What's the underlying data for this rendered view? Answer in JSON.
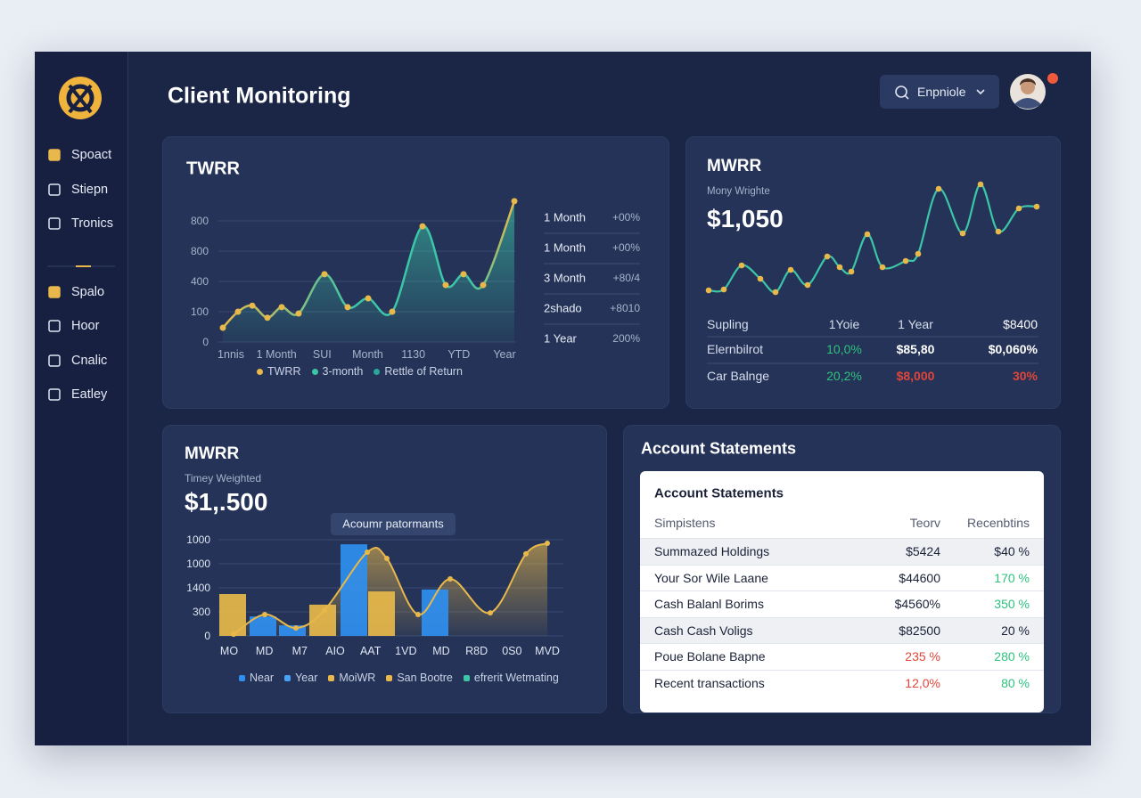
{
  "sidebar": {
    "menu": [
      "Spoact",
      "Stiepn",
      "Tronics",
      "Spalo",
      "Hoor",
      "Cnalic",
      "Eatley"
    ]
  },
  "header": {
    "title": "Client Monitoring",
    "search": "Enpniole"
  },
  "chart_data": [
    {
      "type": "area",
      "title": "TWRR",
      "categories": [
        "1nnis",
        "1 Month",
        "SUI",
        "Month",
        "1130",
        "YTD",
        "Year"
      ],
      "xlim": [
        0,
        335
      ],
      "ylim": [
        0,
        4.7
      ],
      "yticks": [
        0,
        {
          "value": 1,
          "label": "100"
        },
        {
          "value": 2,
          "label": "400"
        },
        {
          "value": 3,
          "label": "800"
        },
        {
          "value": 4,
          "label": "800"
        }
      ],
      "grid": true,
      "series": [
        {
          "color": "#3cc6a8",
          "marker_color": "#e8b84a",
          "x": [
            5,
            22,
            38,
            55,
            71,
            90,
            119,
            145,
            168,
            195,
            229,
            255,
            275,
            297,
            332
          ],
          "values": [
            0.47,
            1.0,
            1.2,
            0.8,
            1.15,
            0.94,
            2.24,
            1.15,
            1.44,
            1.0,
            3.82,
            1.88,
            2.24,
            1.88,
            4.65
          ]
        }
      ],
      "legend": [
        {
          "name": "TWRR",
          "color": "#e8b84a"
        },
        {
          "name": "3-month",
          "color": "#3cc6a8"
        },
        {
          "name": "Rettle of Return",
          "color": "#2aa79a"
        }
      ],
      "side_table": {
        "rows": [
          [
            "1 Month",
            "+00%"
          ],
          [
            "1 Month",
            "+00%"
          ],
          [
            "3 Month",
            "+80/4"
          ],
          [
            "2shado",
            "+8010"
          ],
          [
            "1 Year",
            "200%"
          ]
        ]
      }
    },
    {
      "type": "line",
      "title": "MWRR",
      "subtitle": "Mony Wrighte",
      "value_label": "$1,050",
      "xlim": [
        0,
        370
      ],
      "ylim": [
        0,
        140
      ],
      "series": [
        {
          "color": "#3cc6a8",
          "marker_color": "#e8b84a",
          "x": [
            0,
            17,
            37,
            58,
            75,
            92,
            111,
            133,
            147,
            160,
            178,
            195,
            221,
            235,
            258,
            285,
            305,
            325,
            348,
            368
          ],
          "values": [
            14,
            15,
            42,
            27,
            12,
            37,
            20,
            52,
            40,
            35,
            77,
            40,
            47,
            55,
            128,
            78,
            133,
            80,
            106,
            108
          ]
        }
      ],
      "table": {
        "header": [
          "Supling",
          "1Yoie",
          "1 Year",
          "$8400"
        ],
        "rows": [
          [
            "Elernbilrot",
            "10,0%",
            "$85,80",
            "$0,060%"
          ],
          [
            "Car Balnge",
            "20,2%",
            "$8,000",
            "30%"
          ]
        ]
      }
    },
    {
      "type": "combo",
      "title": "MWRR",
      "subtitle": "Timey Weighted",
      "value_label": "$1,.500",
      "annotation": "Acoumr patormants",
      "categories": [
        "MO",
        "MD",
        "M7",
        "AIO",
        "AAT",
        "1VD",
        "MD",
        "R8D",
        "0S0",
        "MVD"
      ],
      "xlim": [
        0,
        387
      ],
      "ylim": [
        0,
        4.1
      ],
      "yticks": [
        0,
        {
          "value": 1,
          "label": "300"
        },
        {
          "value": 2,
          "label": "1400"
        },
        {
          "value": 3,
          "label": "1000"
        },
        {
          "value": 4,
          "label": "1000"
        }
      ],
      "grid": true,
      "series": [
        {
          "kind": "area",
          "color": "#e8b84a",
          "x": [
            17,
            52,
            87,
            119,
            167,
            189,
            224,
            260,
            305,
            345,
            369
          ],
          "values": [
            0.07,
            0.89,
            0.33,
            1.07,
            3.48,
            3.22,
            0.89,
            2.37,
            0.96,
            3.41,
            3.85
          ]
        },
        {
          "kind": "bar",
          "color": "#e8b84a",
          "x": [
            16,
            117,
            183
          ],
          "values": [
            1.74,
            1.3,
            1.85
          ]
        },
        {
          "kind": "bar",
          "color": "#2f8ff0",
          "x": [
            50,
            83,
            152,
            243
          ],
          "values": [
            0.81,
            0.44,
            3.81,
            1.93
          ]
        }
      ],
      "legend": [
        {
          "name": "Near",
          "color": "#2f8ff0"
        },
        {
          "name": "Year",
          "color": "#4aa3f5"
        },
        {
          "name": "MoiWR",
          "color": "#e8b84a"
        },
        {
          "name": "San Bootre",
          "color": "#e8b84a"
        },
        {
          "name": "efrerit Wetmating",
          "color": "#3cc6a8"
        }
      ]
    }
  ],
  "statements": {
    "title": "Account Statements",
    "panel_title": "Account Statements",
    "header": [
      "Simpistens",
      "Teorv",
      "Recenbtins"
    ],
    "rows": [
      [
        "Summazed Holdings",
        "$5424",
        "$40 %"
      ],
      [
        "Your Sor Wile Laane",
        "$44600",
        "170 %"
      ],
      [
        "Cash Balanl Borims",
        "$4560%",
        "350 %"
      ],
      [
        "Cash Cash Voligs",
        "$82500",
        "20 %"
      ],
      [
        "Poue Bolane Bapne",
        "235 %",
        "280 %"
      ],
      [
        "Recent transactions",
        "12,0%",
        "80 %"
      ]
    ]
  }
}
